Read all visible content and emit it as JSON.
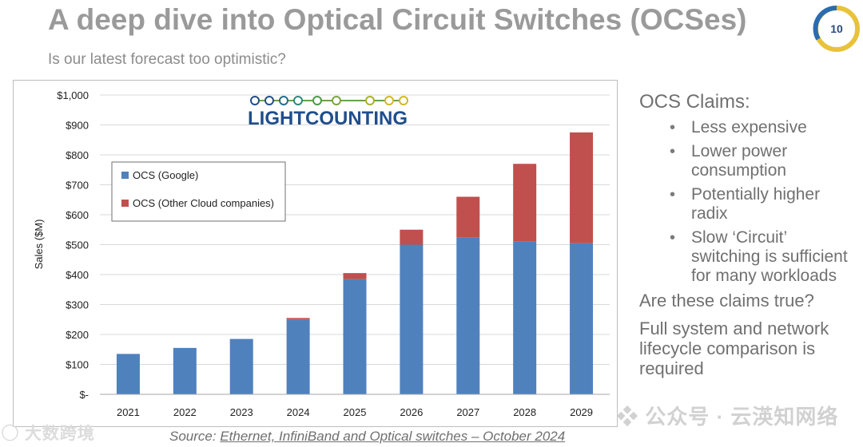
{
  "header": {
    "title": "A deep dive into Optical Circuit Switches (OCSes)",
    "subtitle": "Is our latest forecast too optimistic?",
    "page_number": "10"
  },
  "colors": {
    "google": "#4f81bd",
    "other": "#c0504d",
    "badge_blue": "#2b6cb0",
    "badge_yellow": "#e8c33a"
  },
  "chart_data": {
    "type": "bar",
    "stacked": true,
    "categories": [
      "2021",
      "2022",
      "2023",
      "2024",
      "2025",
      "2026",
      "2027",
      "2028",
      "2029"
    ],
    "series": [
      {
        "name": "OCS (Google)",
        "values": [
          135,
          155,
          185,
          250,
          385,
          500,
          525,
          510,
          505
        ]
      },
      {
        "name": "OCS (Other Cloud companies)",
        "values": [
          0,
          0,
          0,
          5,
          20,
          50,
          135,
          260,
          370
        ]
      }
    ],
    "ylim": [
      0,
      1000
    ],
    "yticks": [
      "$-",
      "$100",
      "$200",
      "$300",
      "$400",
      "$500",
      "$600",
      "$700",
      "$800",
      "$900",
      "$1,000"
    ],
    "ylabel": "Sales ($M)",
    "xlabel": "",
    "grid": true,
    "legend": "upper-left",
    "logo": "LIGHTCOUNTING"
  },
  "claims": {
    "heading": "OCS Claims:",
    "items": [
      "Less expensive",
      "Lower power consumption",
      "Potentially higher radix",
      "Slow ‘Circuit’ switching is sufficient for many workloads"
    ],
    "question": "Are these claims true?",
    "conclusion": "Full system and network lifecycle comparison is required"
  },
  "source": {
    "prefix": "Source: ",
    "link": "Ethernet, InfiniBand and Optical switches – October 2024"
  },
  "watermarks": {
    "left": "大数跨境",
    "right": "公众号 · 云渶知网络"
  }
}
